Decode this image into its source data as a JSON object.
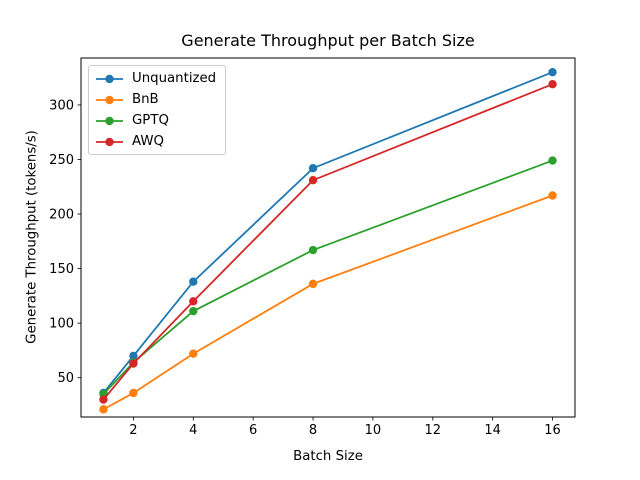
{
  "figure": {
    "background": "#ffffff"
  },
  "chart_data": {
    "type": "line",
    "title": "Generate Throughput per Batch Size",
    "xlabel": "Batch Size",
    "ylabel": "Generate Throughput (tokens/s)",
    "x": [
      1,
      2,
      4,
      8,
      16
    ],
    "series": [
      {
        "name": "Unquantized",
        "color": "#1f77b4",
        "values": [
          36,
          70,
          138,
          242,
          330
        ]
      },
      {
        "name": "BnB",
        "color": "#ff7f0e",
        "values": [
          21,
          36,
          72,
          136,
          217
        ]
      },
      {
        "name": "GPTQ",
        "color": "#2ca02c",
        "values": [
          35,
          64,
          111,
          167,
          249
        ]
      },
      {
        "name": "AWQ",
        "color": "#d62728",
        "values": [
          30,
          63,
          120,
          231,
          319
        ]
      }
    ],
    "xticks": [
      2,
      4,
      6,
      8,
      10,
      12,
      14,
      16
    ],
    "yticks": [
      50,
      100,
      150,
      200,
      250,
      300
    ],
    "xlim": [
      0.25,
      16.75
    ],
    "ylim": [
      14,
      343
    ],
    "grid": false,
    "marker": "circle",
    "legend_position": "upper left"
  }
}
